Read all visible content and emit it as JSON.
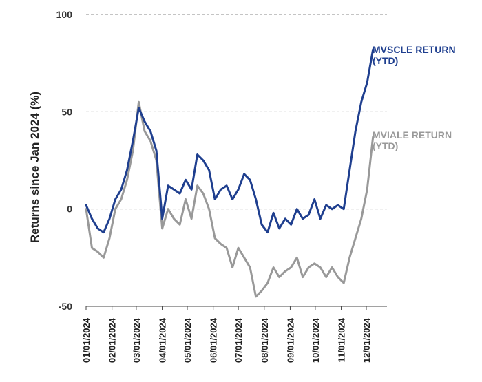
{
  "chart_data": {
    "type": "line",
    "ylabel": "Returns since Jan 2024 (%)",
    "ylim": [
      -50,
      100
    ],
    "yticks": [
      "100",
      "50",
      "0",
      "-50"
    ],
    "grid": "horizontal dashed",
    "x_ticks": [
      "01/01/2024",
      "02/01/2024",
      "03/01/2024",
      "04/01/2024",
      "05/01/2024",
      "06/01/2024",
      "07/01/2024",
      "08/01/2024",
      "09/01/2024",
      "10/01/2024",
      "11/01/2024",
      "12/01/2024"
    ],
    "x": [
      "2024-01-01",
      "2024-01-08",
      "2024-01-15",
      "2024-01-22",
      "2024-01-29",
      "2024-02-05",
      "2024-02-12",
      "2024-02-19",
      "2024-02-26",
      "2024-03-04",
      "2024-03-11",
      "2024-03-18",
      "2024-03-25",
      "2024-04-01",
      "2024-04-08",
      "2024-04-15",
      "2024-04-22",
      "2024-04-29",
      "2024-05-06",
      "2024-05-13",
      "2024-05-20",
      "2024-05-27",
      "2024-06-03",
      "2024-06-10",
      "2024-06-17",
      "2024-06-24",
      "2024-07-01",
      "2024-07-08",
      "2024-07-15",
      "2024-07-22",
      "2024-07-29",
      "2024-08-05",
      "2024-08-12",
      "2024-08-19",
      "2024-08-26",
      "2024-09-02",
      "2024-09-09",
      "2024-09-16",
      "2024-09-23",
      "2024-09-30",
      "2024-10-07",
      "2024-10-14",
      "2024-10-21",
      "2024-10-28",
      "2024-11-04",
      "2024-11-11",
      "2024-11-18",
      "2024-11-25",
      "2024-12-02",
      "2024-12-09"
    ],
    "series": [
      {
        "name": "MVSCLE RETURN (YTD)",
        "color": "#1f3f8f",
        "values": [
          2,
          -5,
          -10,
          -12,
          -5,
          5,
          10,
          20,
          35,
          52,
          45,
          40,
          30,
          -5,
          12,
          10,
          8,
          15,
          10,
          28,
          25,
          20,
          5,
          10,
          12,
          5,
          10,
          18,
          15,
          5,
          -8,
          -12,
          -2,
          -10,
          -5,
          -8,
          0,
          -5,
          -3,
          5,
          -5,
          2,
          0,
          2,
          0,
          20,
          40,
          55,
          65,
          82
        ]
      },
      {
        "name": "MVIALE RETURN (YTD)",
        "color": "#999999",
        "values": [
          0,
          -20,
          -22,
          -25,
          -15,
          0,
          5,
          15,
          30,
          55,
          40,
          35,
          25,
          -10,
          0,
          -5,
          -8,
          5,
          -5,
          12,
          8,
          0,
          -15,
          -18,
          -20,
          -30,
          -20,
          -25,
          -30,
          -45,
          -42,
          -38,
          -30,
          -35,
          -32,
          -30,
          -25,
          -35,
          -30,
          -28,
          -30,
          -35,
          -30,
          -35,
          -38,
          -25,
          -15,
          -5,
          10,
          37
        ]
      }
    ]
  }
}
